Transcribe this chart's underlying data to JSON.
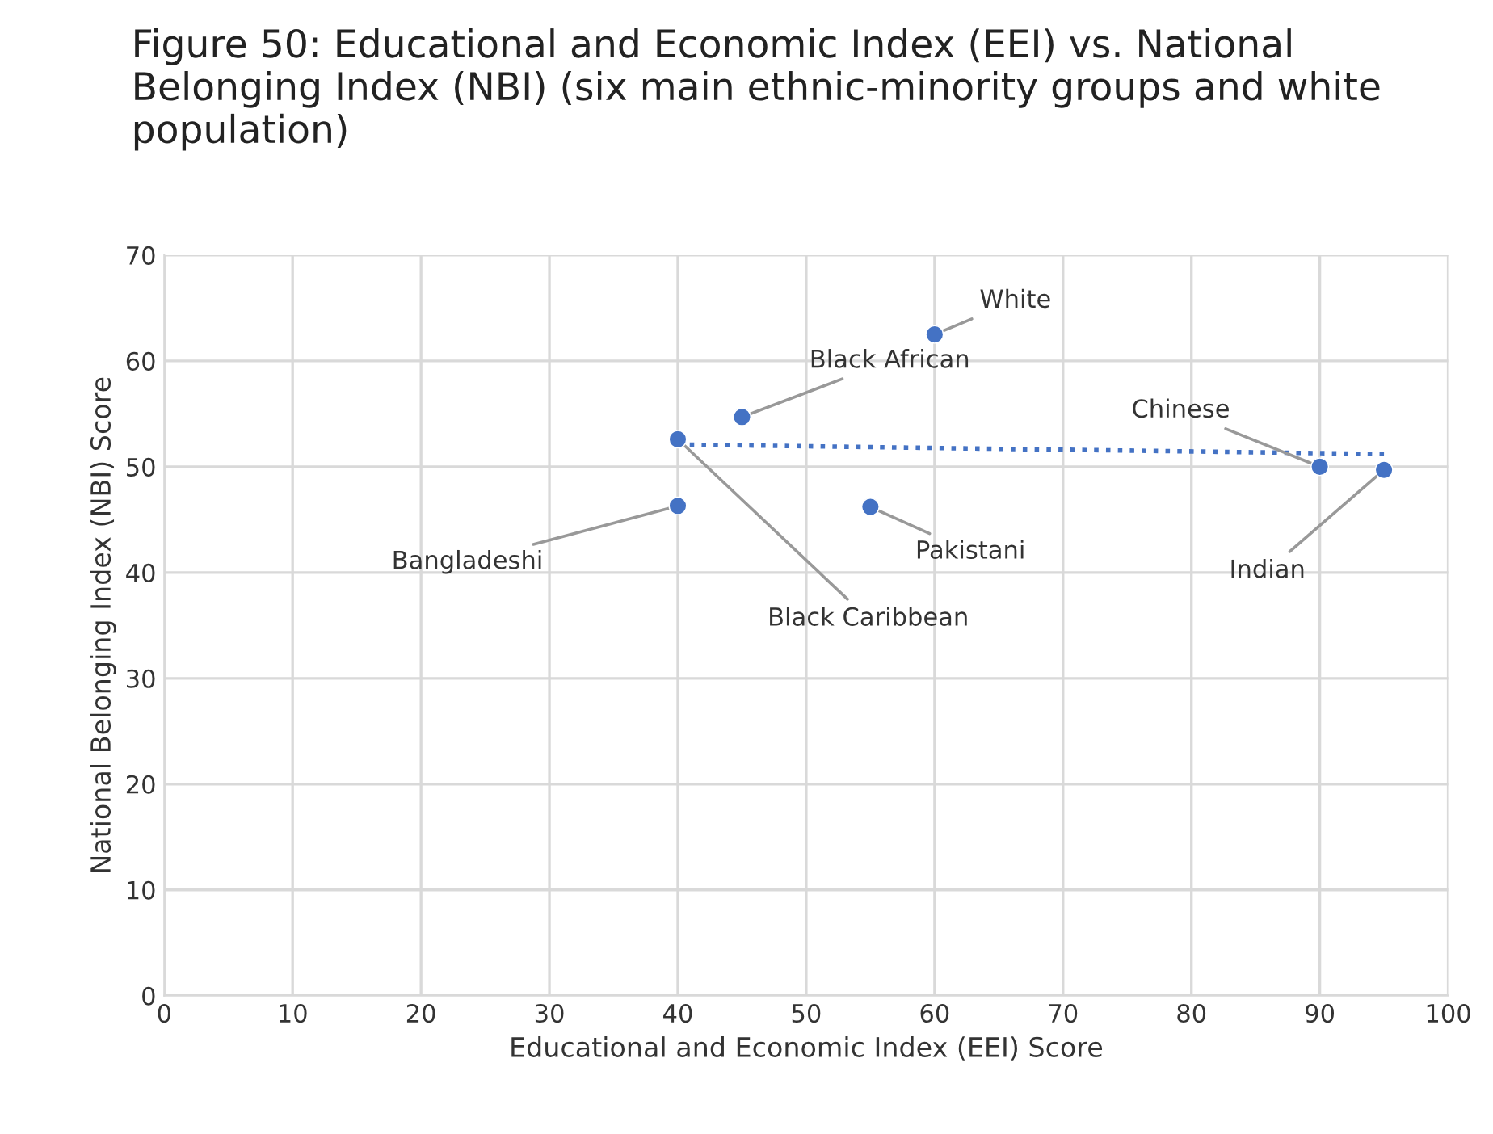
{
  "chart_data": {
    "type": "scatter",
    "title": "Figure 50: Educational and Economic Index (EEI) vs. National Belonging Index (NBI) (six main ethnic-minority groups and white population)",
    "xlabel": "Educational and Economic Index (EEI) Score",
    "ylabel": "National Belonging Index (NBI) Score",
    "series": [
      {
        "color": "#4472c4",
        "marker": "circle",
        "x": [
          60,
          45,
          40,
          40,
          55,
          90,
          95
        ],
        "values": [
          62.5,
          54.7,
          52.6,
          46.3,
          46.2,
          50.0,
          49.7
        ]
      },
      {
        "type": "line",
        "color": "#4472c4",
        "marker": "none",
        "line_style": "dotted",
        "x": [
          40,
          95
        ],
        "values": [
          52.1,
          51.2
        ]
      }
    ],
    "annotations": [
      {
        "text": "White",
        "x": 60,
        "y": 62.5
      },
      {
        "text": "Black African",
        "x": 45,
        "y": 54.7
      },
      {
        "text": "Black Caribbean",
        "x": 40,
        "y": 52.6
      },
      {
        "text": "Bangladeshi",
        "x": 40,
        "y": 46.3
      },
      {
        "text": "Pakistani",
        "x": 55,
        "y": 46.2
      },
      {
        "text": "Chinese",
        "x": 90,
        "y": 50.0
      },
      {
        "text": "Indian",
        "x": 95,
        "y": 49.7
      }
    ],
    "xlim": [
      0,
      100
    ],
    "xticks": [
      0,
      10,
      20,
      30,
      40,
      50,
      60,
      70,
      80,
      90,
      100
    ],
    "ylim": [
      0,
      70
    ],
    "yticks": [
      0,
      10,
      20,
      30,
      40,
      50,
      60,
      70
    ],
    "grid": true,
    "legend": false
  }
}
